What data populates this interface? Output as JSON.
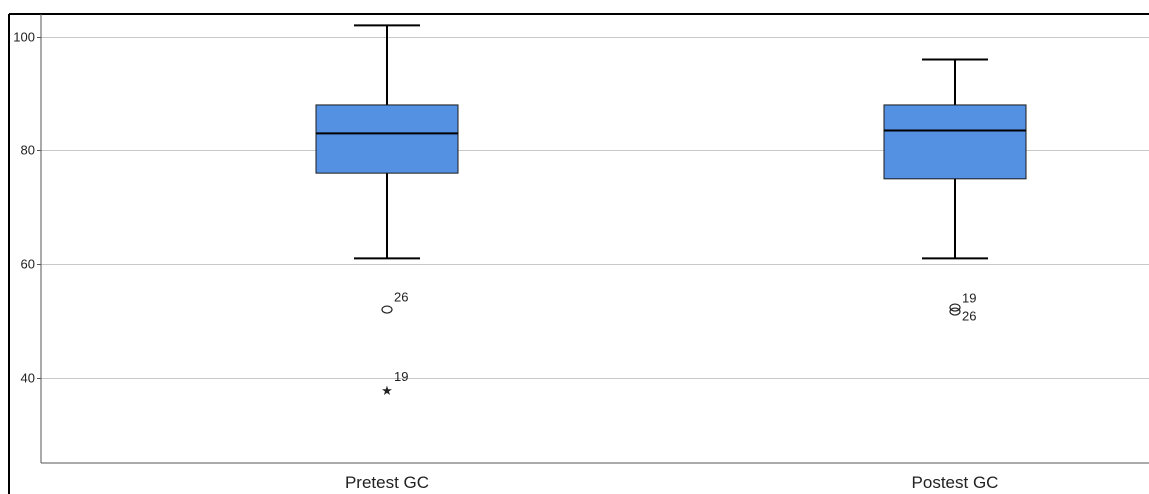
{
  "chart_data": {
    "type": "boxplot",
    "title": "",
    "xlabel": "",
    "ylabel": "",
    "ylim": [
      25,
      104
    ],
    "yticks": [
      40,
      60,
      80,
      100
    ],
    "grid": true,
    "legend": "none",
    "box_color": "#5591e3",
    "categories": [
      "Pretest GC",
      "Postest GC"
    ],
    "boxes": [
      {
        "category": "Pretest GC",
        "whisker_low": 61,
        "q1": 76,
        "median": 83,
        "q3": 88,
        "whisker_high": 102,
        "outliers": [
          {
            "value": 52,
            "case": "26",
            "marker": "circle"
          },
          {
            "value": 38,
            "case": "19",
            "marker": "star"
          }
        ]
      },
      {
        "category": "Postest GC",
        "whisker_low": 61,
        "q1": 75,
        "median": 83.5,
        "q3": 88,
        "whisker_high": 96,
        "outliers": [
          {
            "value": 52,
            "case": "19",
            "marker": "circle"
          },
          {
            "value": 52,
            "case": "26",
            "marker": "circle"
          }
        ]
      }
    ]
  }
}
